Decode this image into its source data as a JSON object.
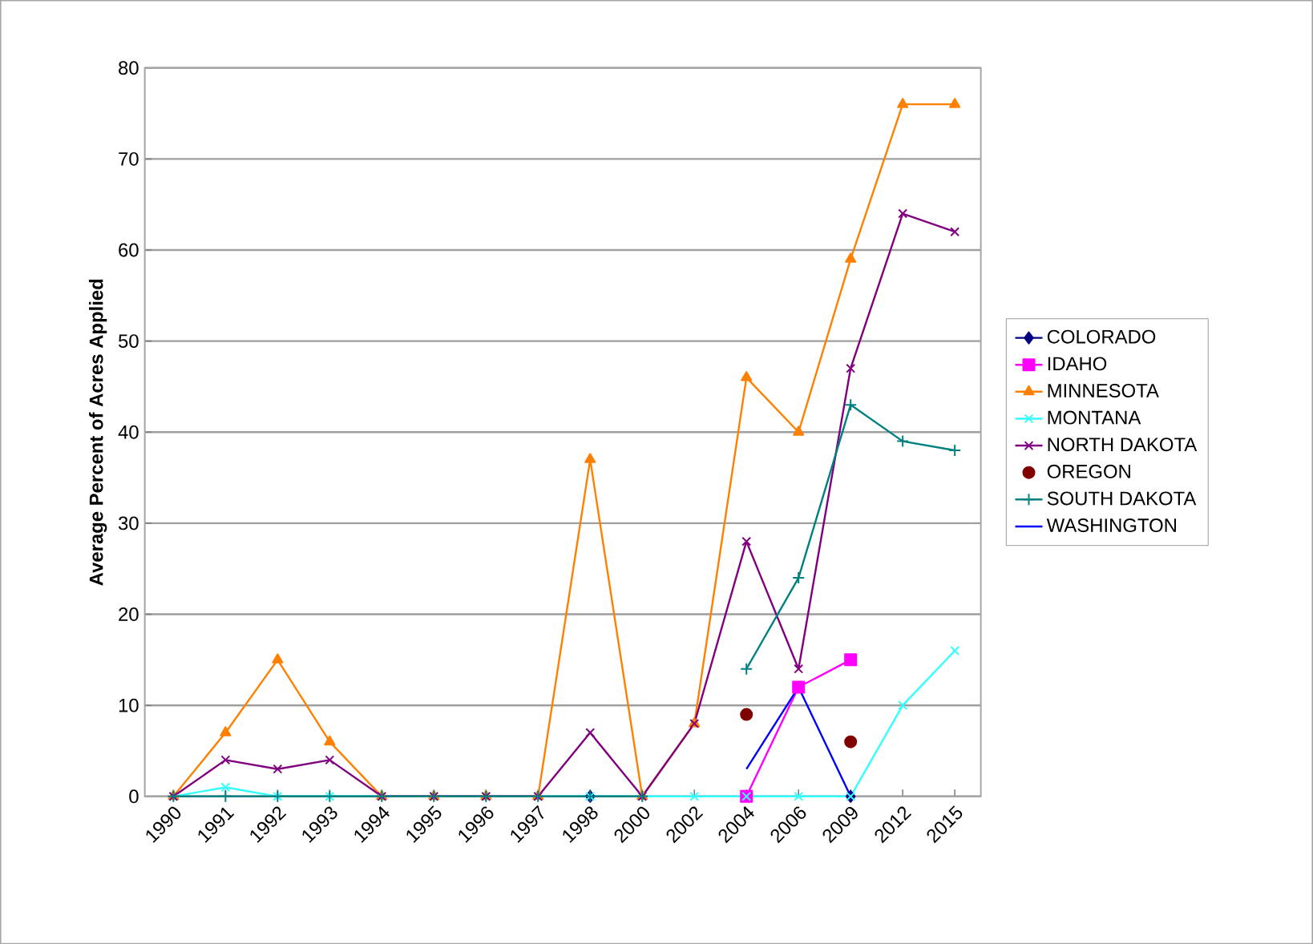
{
  "chart_data": {
    "type": "line",
    "ylabel": "Average Percent of Acres Applied",
    "categories": [
      "1990",
      "1991",
      "1992",
      "1993",
      "1994",
      "1995",
      "1996",
      "1997",
      "1998",
      "2000",
      "2002",
      "2004",
      "2006",
      "2009",
      "2012",
      "2015"
    ],
    "series": [
      {
        "name": "COLORADO",
        "color": "#000080",
        "marker": "diamond",
        "values": [
          null,
          null,
          null,
          null,
          null,
          null,
          null,
          null,
          0,
          null,
          null,
          null,
          null,
          0,
          null,
          null
        ]
      },
      {
        "name": "IDAHO",
        "color": "#ff00ff",
        "marker": "square",
        "values": [
          null,
          null,
          null,
          null,
          null,
          null,
          null,
          null,
          null,
          null,
          null,
          0,
          12,
          15,
          null,
          null
        ]
      },
      {
        "name": "MINNESOTA",
        "color": "#ff8000",
        "marker": "triangle",
        "values": [
          0,
          7,
          15,
          6,
          0,
          0,
          0,
          0,
          37,
          0,
          8,
          46,
          40,
          59,
          76,
          76
        ]
      },
      {
        "name": "MONTANA",
        "color": "#33ffff",
        "marker": "cross",
        "values": [
          0,
          1,
          0,
          0,
          0,
          0,
          0,
          0,
          0,
          0,
          0,
          0,
          0,
          0,
          10,
          16
        ]
      },
      {
        "name": "NORTH DAKOTA",
        "color": "#800080",
        "marker": "cross",
        "values": [
          0,
          4,
          3,
          4,
          0,
          0,
          0,
          0,
          7,
          0,
          8,
          28,
          14,
          47,
          64,
          62
        ]
      },
      {
        "name": "OREGON",
        "type": "scatter",
        "color": "#800000",
        "marker": "circle",
        "values": [
          null,
          null,
          null,
          null,
          null,
          null,
          null,
          null,
          null,
          null,
          null,
          9,
          null,
          6,
          null,
          null
        ]
      },
      {
        "name": "SOUTH DAKOTA",
        "color": "#008080",
        "marker": "plus",
        "values": [
          0,
          0,
          0,
          0,
          0,
          0,
          0,
          0,
          0,
          0,
          null,
          14,
          24,
          43,
          39,
          38
        ]
      },
      {
        "name": "WASHINGTON",
        "color": "#0000ff",
        "marker": "none",
        "values": [
          null,
          null,
          null,
          null,
          null,
          null,
          null,
          null,
          null,
          null,
          null,
          3,
          12,
          0,
          null,
          null
        ]
      }
    ],
    "ylim": [
      0,
      80
    ],
    "yticks": [
      0,
      10,
      20,
      30,
      40,
      50,
      60,
      70,
      80
    ],
    "grid": "y",
    "legend": "right"
  }
}
